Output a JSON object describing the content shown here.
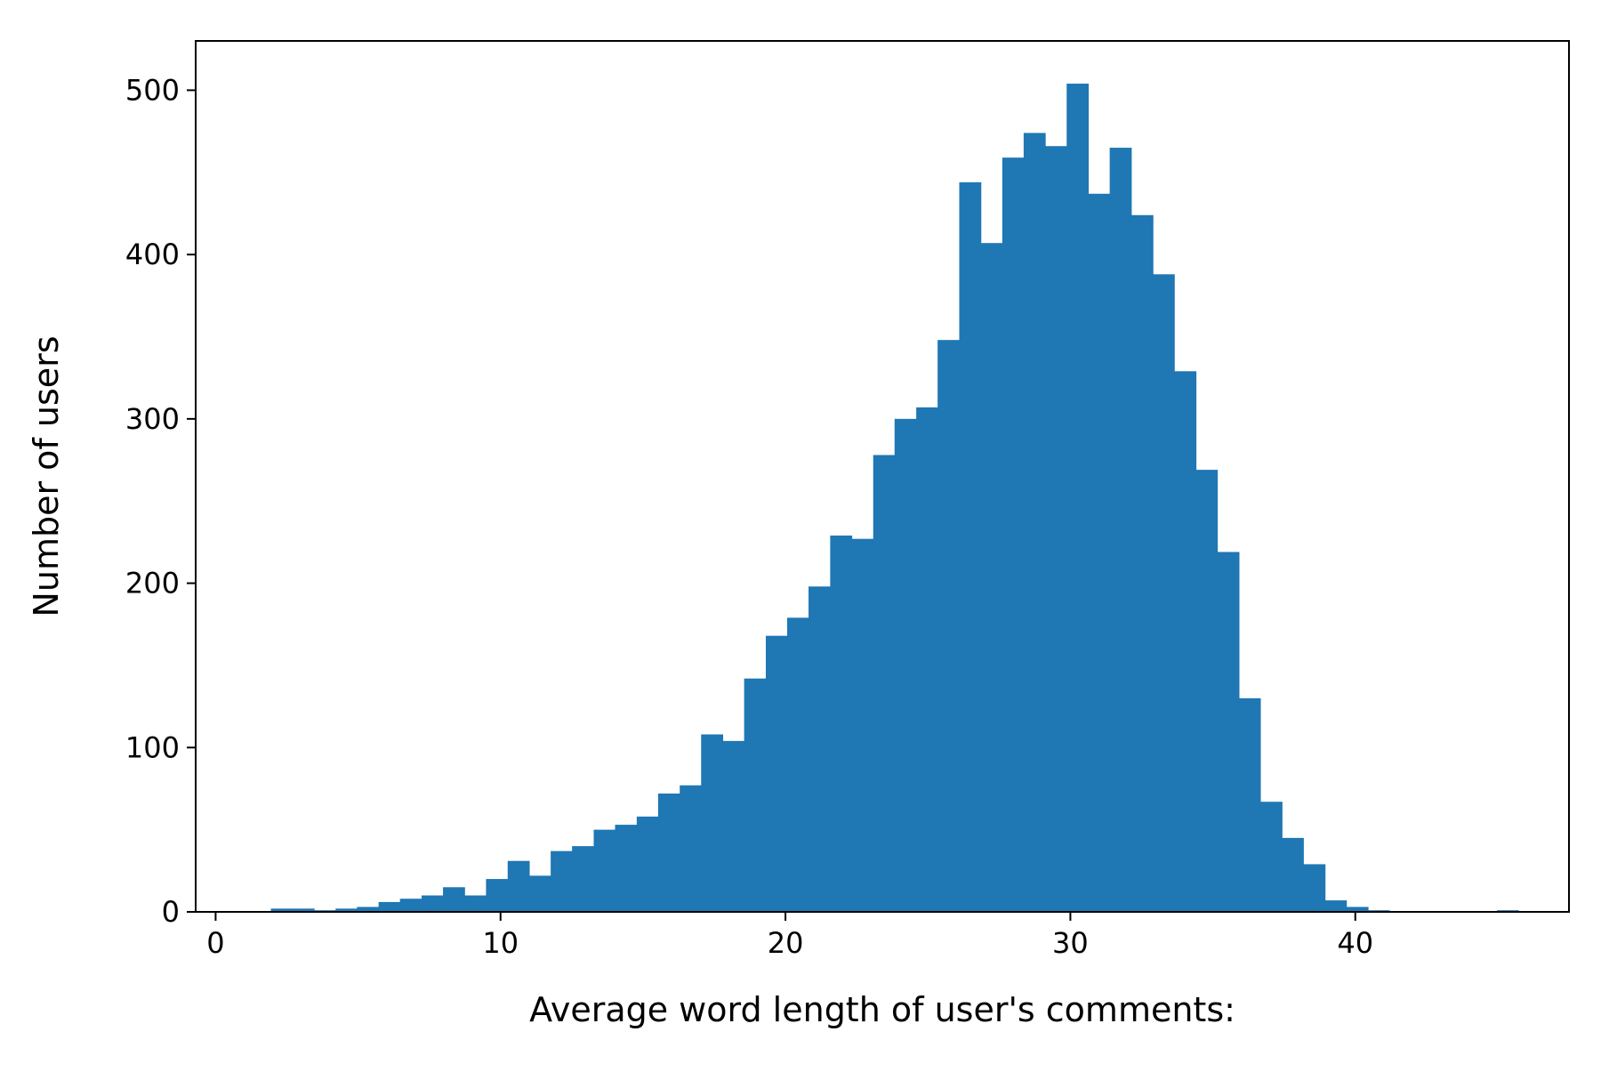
{
  "chart_data": {
    "type": "bar",
    "title": "",
    "xlabel": "Average word length of user's comments:",
    "ylabel": "Number of users",
    "xlim": [
      -0.7,
      47.5
    ],
    "ylim": [
      0,
      530
    ],
    "xticks": [
      0,
      10,
      20,
      30,
      40
    ],
    "yticks": [
      0,
      100,
      200,
      300,
      400,
      500
    ],
    "grid": false,
    "bar_color": "#1f77b4",
    "bin_width": 0.7547,
    "x": [
      1.94,
      2.7,
      3.45,
      4.21,
      4.96,
      5.72,
      6.47,
      7.23,
      7.98,
      8.74,
      9.49,
      10.25,
      11.0,
      11.76,
      12.51,
      13.27,
      14.02,
      14.78,
      15.53,
      16.29,
      17.04,
      17.8,
      18.55,
      19.31,
      20.06,
      20.81,
      21.57,
      22.32,
      23.08,
      23.83,
      24.59,
      25.34,
      26.1,
      26.85,
      27.61,
      28.36,
      29.12,
      29.87,
      30.63,
      31.38,
      32.14,
      32.89,
      33.65,
      34.4,
      35.16,
      35.91,
      36.67,
      37.42,
      38.18,
      38.93,
      39.69,
      40.44,
      41.2,
      41.95,
      42.71,
      43.46,
      44.22,
      44.97
    ],
    "values": [
      2,
      2,
      1,
      2,
      3,
      6,
      8,
      10,
      15,
      10,
      20,
      31,
      22,
      37,
      40,
      50,
      53,
      58,
      72,
      77,
      108,
      104,
      142,
      168,
      179,
      198,
      229,
      227,
      278,
      300,
      307,
      348,
      444,
      407,
      459,
      474,
      466,
      504,
      437,
      465,
      424,
      388,
      329,
      269,
      219,
      130,
      67,
      45,
      29,
      7,
      3,
      1,
      0,
      0,
      0,
      0,
      0,
      1
    ]
  }
}
